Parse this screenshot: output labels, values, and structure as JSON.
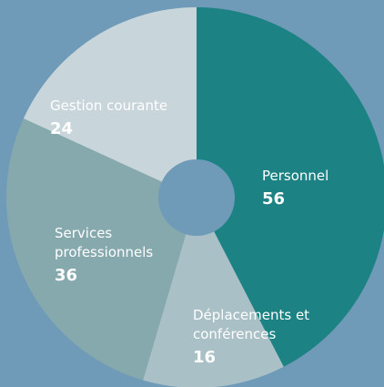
{
  "chart_data": {
    "type": "donut",
    "categories": [
      "Personnel",
      "Déplacements et conférences",
      "Services professionnels",
      "Gestion courante"
    ],
    "values": [
      56,
      16,
      36,
      24
    ],
    "colors": [
      "#1c8283",
      "#a9c0c7",
      "#86a9ad",
      "#c8d6db"
    ],
    "background": "#6f9bb8"
  }
}
